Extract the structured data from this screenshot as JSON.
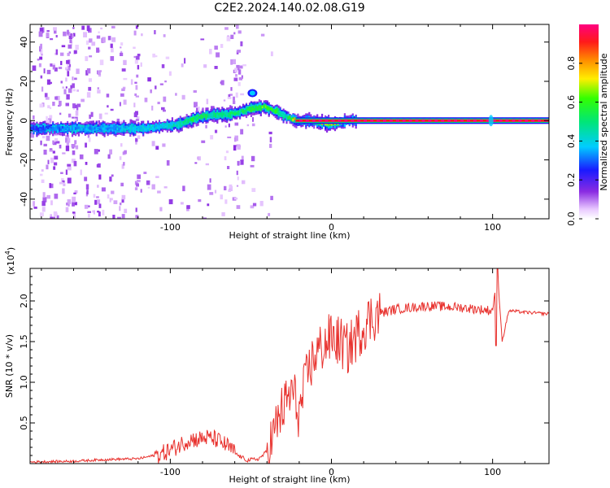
{
  "title": "C2E2.2024.140.02.08.G19",
  "colors": {
    "snr_line": "#e8312d",
    "background": "#ffffff",
    "axis": "#000000"
  },
  "chart_data": [
    {
      "type": "heatmap",
      "xlabel": "Height of straight line (km)",
      "ylabel": "Frequency (Hz)",
      "xlim": [
        -187,
        135
      ],
      "ylim": [
        -50,
        49
      ],
      "x_ticks": [
        -100,
        0,
        100
      ],
      "y_ticks": [
        -40,
        -20,
        0,
        20,
        40
      ],
      "colorbar": {
        "label": "Normalized spectral amplitude",
        "range": [
          0,
          1
        ],
        "ticks": [
          0.0,
          0.2,
          0.4,
          0.6,
          0.8
        ],
        "tick_labels": [
          "0.0",
          "0.2",
          "0.4",
          "0.6",
          "0.8"
        ],
        "colormap": "rainbow (white-violet-blue-cyan-green-yellow-red-magenta)"
      },
      "ridge": {
        "description": "dominant spectral ridge frequency vs height",
        "x": [
          -187,
          -175,
          -160,
          -140,
          -120,
          -105,
          -95,
          -85,
          -75,
          -65,
          -58,
          -50,
          -42,
          -35,
          -28,
          -22,
          -15,
          -5,
          0,
          5,
          12,
          50,
          100,
          135
        ],
        "y": [
          -4,
          -4,
          -4,
          -4,
          -4,
          -3,
          -2,
          1,
          3,
          3,
          4,
          6,
          7,
          5,
          2,
          0,
          0,
          -1,
          -2,
          -1,
          0,
          0,
          0,
          0
        ],
        "amplitude": [
          0.25,
          0.3,
          0.35,
          0.35,
          0.4,
          0.4,
          0.45,
          0.55,
          0.5,
          0.5,
          0.5,
          0.55,
          0.65,
          0.55,
          0.45,
          0.9,
          0.9,
          0.8,
          0.7,
          0.75,
          0.9,
          0.95,
          0.95,
          0.95
        ]
      }
    },
    {
      "type": "line",
      "xlabel": "Height of straight line (km)",
      "ylabel": "SNR (10 * v/v)",
      "y_multiplier_label": "(x10",
      "y_multiplier_exponent": "4",
      "y_multiplier_close": ")",
      "xlim": [
        -187,
        135
      ],
      "ylim": [
        0,
        2.4
      ],
      "x_ticks": [
        -100,
        0,
        100
      ],
      "y_ticks": [
        0.5,
        1.0,
        1.5,
        2.0
      ],
      "y_tick_labels": [
        "0.5",
        "1.0",
        "1.5",
        "2.0"
      ],
      "series": [
        {
          "x": [
            -187,
            -160,
            -140,
            -120,
            -105,
            -95,
            -88,
            -82,
            -78,
            -72,
            -65,
            -58,
            -52,
            -45,
            -40,
            -36,
            -32,
            -28,
            -24,
            -20,
            -15,
            -10,
            -5,
            0,
            5,
            10,
            15,
            20,
            25,
            30,
            40,
            50,
            60,
            70,
            80,
            90,
            100,
            103,
            106,
            110,
            120,
            135
          ],
          "y": [
            0.02,
            0.03,
            0.05,
            0.06,
            0.12,
            0.22,
            0.3,
            0.3,
            0.32,
            0.3,
            0.22,
            0.1,
            0.04,
            0.06,
            0.15,
            0.35,
            0.6,
            0.75,
            0.9,
            0.6,
            1.1,
            1.35,
            1.45,
            1.55,
            1.5,
            1.4,
            1.55,
            1.7,
            1.8,
            1.85,
            1.9,
            1.92,
            1.94,
            1.93,
            1.92,
            1.9,
            1.88,
            2.35,
            1.5,
            1.88,
            1.86,
            1.84
          ]
        }
      ]
    }
  ]
}
